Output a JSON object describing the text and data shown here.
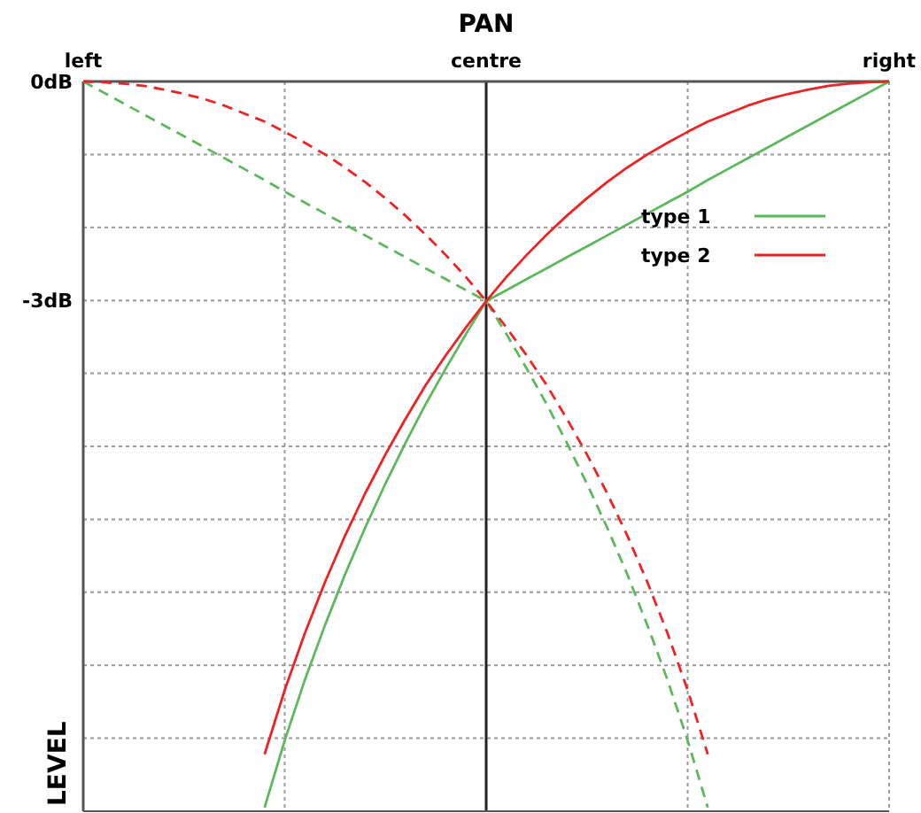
{
  "chart_data": {
    "type": "line",
    "xlabel": "PAN",
    "ylabel": "LEVEL",
    "categories": [
      "left",
      null,
      null,
      null,
      null,
      null,
      null,
      null,
      null,
      null,
      null,
      null,
      null,
      null,
      null,
      null,
      null,
      null,
      null,
      null,
      "centre",
      null,
      null,
      null,
      null,
      null,
      null,
      null,
      null,
      null,
      null,
      null,
      null,
      null,
      null,
      null,
      null,
      null,
      null,
      null,
      "right"
    ],
    "ylim": [
      -10,
      0
    ],
    "yticks": [
      {
        "value": 0,
        "label": "0dB"
      },
      {
        "value": -1,
        "label": null
      },
      {
        "value": -2,
        "label": null
      },
      {
        "value": -3,
        "label": "-3dB"
      },
      {
        "value": -4,
        "label": null
      },
      {
        "value": -5,
        "label": null
      },
      {
        "value": -6,
        "label": null
      },
      {
        "value": -7,
        "label": null
      },
      {
        "value": -8,
        "label": null
      },
      {
        "value": -9,
        "label": null
      },
      {
        "value": -10,
        "label": null
      }
    ],
    "grid": true,
    "legend": "right",
    "ref_lines": [
      {
        "axis": "x",
        "value": "centre",
        "color": "#222222",
        "line_style": "solid"
      }
    ],
    "series": [
      {
        "name": "type 1",
        "color": "#5cb85c",
        "line_style": "solid",
        "values": [
          null,
          null,
          null,
          null,
          null,
          null,
          null,
          null,
          null,
          -9.95,
          -9.03,
          -8.2,
          -7.45,
          -6.75,
          -6.11,
          -5.51,
          -4.95,
          -4.42,
          -3.93,
          -3.46,
          -3.01,
          -2.86,
          -2.71,
          -2.56,
          -2.41,
          -2.26,
          -2.11,
          -1.96,
          -1.81,
          -1.66,
          -1.51,
          -1.35,
          -1.2,
          -1.05,
          -0.9,
          -0.75,
          -0.6,
          -0.45,
          -0.3,
          -0.15,
          0
        ]
      },
      {
        "name": "type 2",
        "color": "#ee2222",
        "line_style": "solid",
        "values": [
          null,
          null,
          null,
          null,
          null,
          null,
          null,
          null,
          null,
          -9.22,
          -8.34,
          -7.56,
          -6.86,
          -6.22,
          -5.64,
          -5.11,
          -4.62,
          -4.16,
          -3.75,
          -3.37,
          -3.01,
          -2.68,
          -2.38,
          -2.1,
          -1.84,
          -1.6,
          -1.38,
          -1.18,
          -1.0,
          -0.84,
          -0.69,
          -0.55,
          -0.44,
          -0.33,
          -0.24,
          -0.17,
          -0.11,
          -0.06,
          -0.03,
          -0.01,
          0
        ]
      },
      {
        "color": "#5cb85c",
        "line_style": "dashed",
        "values": [
          0,
          -0.15,
          -0.3,
          -0.45,
          -0.6,
          -0.75,
          -0.9,
          -1.05,
          -1.2,
          -1.35,
          -1.51,
          -1.66,
          -1.81,
          -1.96,
          -2.11,
          -2.26,
          -2.41,
          -2.56,
          -2.71,
          -2.86,
          -3.01,
          -3.46,
          -3.93,
          -4.42,
          -4.95,
          -5.51,
          -6.11,
          -6.75,
          -7.45,
          -8.2,
          -9.03,
          -9.95,
          null,
          null,
          null,
          null,
          null,
          null,
          null,
          null,
          null
        ]
      },
      {
        "color": "#ee2222",
        "line_style": "dashed",
        "values": [
          0,
          -0.01,
          -0.03,
          -0.06,
          -0.11,
          -0.17,
          -0.24,
          -0.33,
          -0.44,
          -0.55,
          -0.69,
          -0.84,
          -1.0,
          -1.18,
          -1.38,
          -1.6,
          -1.84,
          -2.1,
          -2.38,
          -2.68,
          -3.01,
          -3.37,
          -3.75,
          -4.16,
          -4.62,
          -5.11,
          -5.64,
          -6.22,
          -6.86,
          -7.56,
          -8.34,
          -9.22,
          null,
          null,
          null,
          null,
          null,
          null,
          null,
          null,
          null
        ]
      }
    ]
  }
}
